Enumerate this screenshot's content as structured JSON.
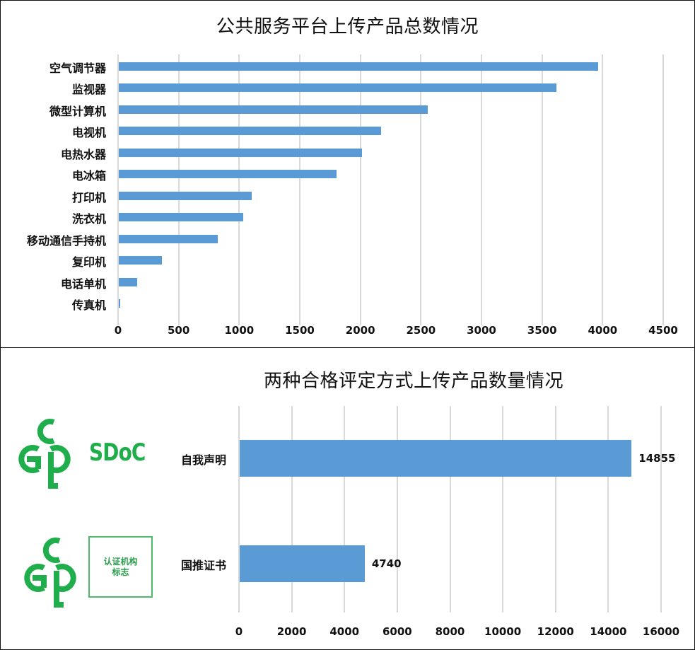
{
  "colors": {
    "bar": "#5b9bd5",
    "gridline": "#d9d9d9",
    "logo_green": "#1fae4b",
    "text": "#111111"
  },
  "top_chart": {
    "title": "公共服务平台上传产品总数情况",
    "ticks": [
      "0",
      "500",
      "1000",
      "1500",
      "2000",
      "2500",
      "3000",
      "3500",
      "4000",
      "4500"
    ],
    "categories": [
      "空气调节器",
      "监视器",
      "微型计算机",
      "电视机",
      "电热水器",
      "电冰箱",
      "打印机",
      "洗衣机",
      "移动通信手持机",
      "复印机",
      "电话单机",
      "传真机"
    ]
  },
  "bottom_chart": {
    "title": "两种合格评定方式上传产品数量情况",
    "ticks": [
      "0",
      "2000",
      "4000",
      "6000",
      "8000",
      "10000",
      "12000",
      "14000",
      "16000"
    ],
    "categories": [
      "自我声明",
      "国推证书"
    ],
    "value_labels": [
      "14855",
      "4740"
    ]
  },
  "logos": {
    "sdoc_text": "SDoC",
    "cert_box_line1": "认证机构",
    "cert_box_line2": "标志"
  },
  "chart_data": [
    {
      "type": "bar",
      "orientation": "horizontal",
      "title": "公共服务平台上传产品总数情况",
      "xlabel": "",
      "ylabel": "",
      "categories": [
        "空气调节器",
        "监视器",
        "微型计算机",
        "电视机",
        "电热水器",
        "电冰箱",
        "打印机",
        "洗衣机",
        "移动通信手持机",
        "复印机",
        "电话单机",
        "传真机"
      ],
      "values": [
        3960,
        3615,
        2550,
        2165,
        2005,
        1800,
        1100,
        1030,
        820,
        355,
        150,
        8
      ],
      "xlim": [
        0,
        4500
      ],
      "xticks": [
        0,
        500,
        1000,
        1500,
        2000,
        2500,
        3000,
        3500,
        4000,
        4500
      ],
      "grid": true,
      "legend": null
    },
    {
      "type": "bar",
      "orientation": "horizontal",
      "title": "两种合格评定方式上传产品数量情况",
      "xlabel": "",
      "ylabel": "",
      "categories": [
        "自我声明",
        "国推证书"
      ],
      "values": [
        14855,
        4740
      ],
      "data_labels": [
        "14855",
        "4740"
      ],
      "xlim": [
        0,
        16000
      ],
      "xticks": [
        0,
        2000,
        4000,
        6000,
        8000,
        10000,
        12000,
        14000,
        16000
      ],
      "grid": true,
      "legend": null
    }
  ]
}
